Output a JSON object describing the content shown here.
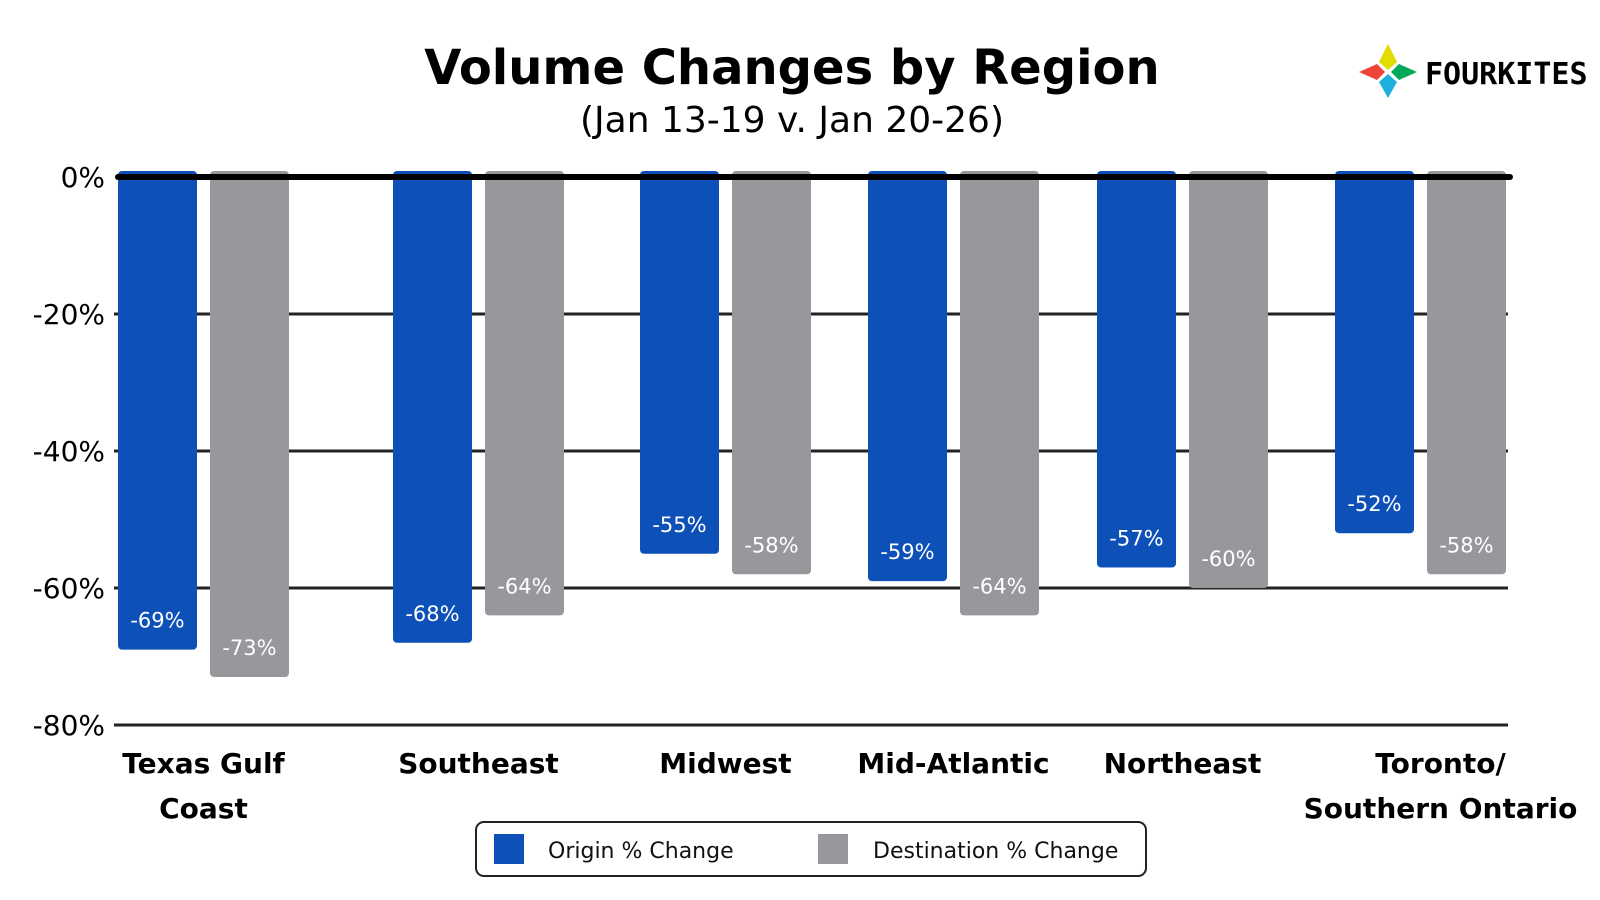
{
  "chart_data": {
    "type": "bar",
    "title": "Volume Changes by Region",
    "subtitle": "(Jan 13-19 v. Jan 20-26)",
    "categories": [
      [
        "Texas Gulf",
        "Coast"
      ],
      [
        "Southeast"
      ],
      [
        "Midwest"
      ],
      [
        "Mid-Atlantic"
      ],
      [
        "Northeast"
      ],
      [
        "Toronto/",
        "Southern Ontario"
      ]
    ],
    "series": [
      {
        "name": "Origin % Change",
        "color": "#0c50b8",
        "values": [
          -69,
          -68,
          -55,
          -59,
          -57,
          -52
        ]
      },
      {
        "name": "Destination % Change",
        "color": "#96989c",
        "values": [
          -73,
          -64,
          -58,
          -64,
          -60,
          -58
        ]
      }
    ],
    "data_labels": [
      [
        "-69%",
        "-68%",
        "-55%",
        "-59%",
        "-57%",
        "-52%"
      ],
      [
        "-73%",
        "-64%",
        "-58%",
        "-64%",
        "-60%",
        "-58%"
      ]
    ],
    "ylim": [
      -80,
      0
    ],
    "yticks": [
      0,
      -20,
      -40,
      -60,
      -80
    ],
    "ytick_labels": [
      "0%",
      "-20%",
      "-40%",
      "-60%",
      "-80%"
    ],
    "xlabel": "",
    "ylabel": "",
    "grid": true,
    "legend_position": "bottom"
  },
  "logo": {
    "text": "FOURKITES",
    "colors": [
      "#e2dc00",
      "#00a85a",
      "#1fb0e0",
      "#f04438"
    ]
  }
}
